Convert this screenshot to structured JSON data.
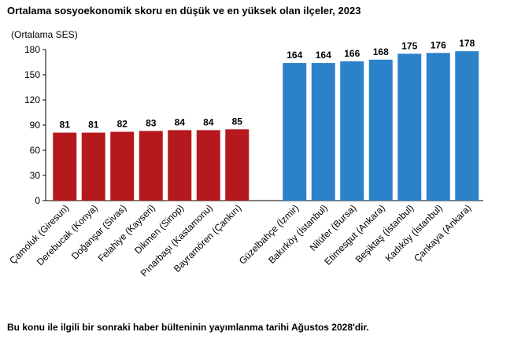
{
  "title": "Ortalama sosyoekonomik skoru en düşük ve en yüksek olan ilçeler, 2023",
  "footer": "Bu konu ile ilgili bir sonraki haber bülteninin yayımlanma tarihi Ağustos 2028'dir.",
  "chart_data": {
    "type": "bar",
    "title": "Ortalama sosyoekonomik skoru en düşük ve en yüksek olan ilçeler, 2023",
    "ylabel": "(Ortalama SES)",
    "ylim": [
      0,
      180
    ],
    "yticks": [
      0,
      30,
      60,
      90,
      120,
      150,
      180
    ],
    "grid": false,
    "categories": [
      "Çamoluk (Giresun)",
      "Derebucak (Konya)",
      "Doğanşar (Sivas)",
      "Felahiye (Kayseri)",
      "Dikmen (Sinop)",
      "Pınarbaşı (Kastamonu)",
      "Bayramören (Çankırı)",
      "Güzelbahçe (İzmir)",
      "Bakırköy (İstanbul)",
      "Nilüfer (Bursa)",
      "Etimesgut (Ankara)",
      "Beşiktaş (İstanbul)",
      "Kadıköy (İstanbul)",
      "Çankaya (Ankara)"
    ],
    "values": [
      81,
      81,
      82,
      83,
      84,
      84,
      85,
      164,
      164,
      166,
      168,
      175,
      176,
      178
    ],
    "colors": {
      "lowest": "#b5191d",
      "highest": "#2b82c9"
    }
  }
}
